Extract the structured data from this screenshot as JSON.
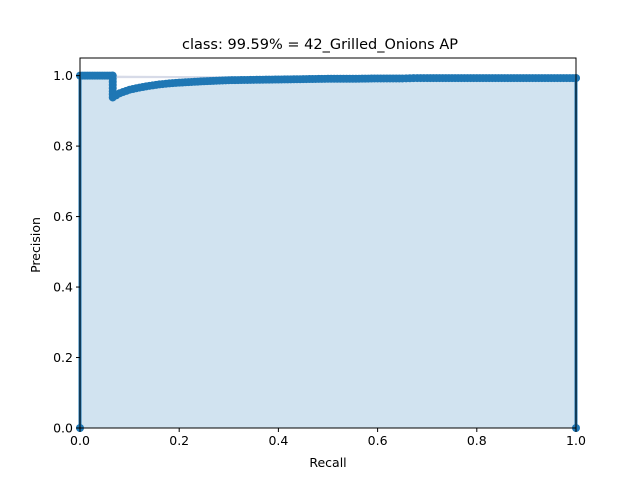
{
  "chart_data": {
    "type": "line",
    "title": "class: 99.59% = 42_Grilled_Onions AP",
    "xlabel": "Recall",
    "ylabel": "Precision",
    "xlim": [
      0.0,
      1.0
    ],
    "ylim": [
      0.0,
      1.05
    ],
    "xticks": [
      0.0,
      0.2,
      0.4,
      0.6,
      0.8,
      1.0
    ],
    "yticks": [
      0.0,
      0.2,
      0.4,
      0.6,
      0.8,
      1.0
    ],
    "xtick_labels": [
      "0.0",
      "0.2",
      "0.4",
      "0.6",
      "0.8",
      "1.0"
    ],
    "ytick_labels": [
      "0.0",
      "0.2",
      "0.4",
      "0.6",
      "0.8",
      "1.0"
    ],
    "grid": false,
    "colors": {
      "line": "#1f77b4",
      "fill": "#d1e3f0",
      "envelope_fill": "#d7dbe8"
    },
    "series": [
      {
        "x": [
          0.0,
          0.0,
          0.005,
          0.01,
          0.015,
          0.02,
          0.025,
          0.03,
          0.035,
          0.04,
          0.045,
          0.05,
          0.055,
          0.06,
          0.065,
          0.066,
          0.066,
          0.08,
          0.1,
          0.12,
          0.14,
          0.16,
          0.18,
          0.2,
          0.25,
          0.3,
          0.35,
          0.4,
          0.45,
          0.5,
          0.55,
          0.6,
          0.65,
          0.68,
          0.7,
          0.75,
          0.8,
          0.85,
          0.9,
          0.95,
          1.0,
          1.0
        ],
        "y": [
          0.0,
          1.0,
          1.0,
          1.0,
          1.0,
          1.0,
          1.0,
          1.0,
          1.0,
          1.0,
          1.0,
          1.0,
          1.0,
          1.0,
          1.0,
          1.0,
          0.938,
          0.95,
          0.96,
          0.966,
          0.971,
          0.975,
          0.978,
          0.98,
          0.984,
          0.987,
          0.988,
          0.989,
          0.99,
          0.991,
          0.991,
          0.992,
          0.992,
          0.993,
          0.993,
          0.993,
          0.993,
          0.993,
          0.993,
          0.993,
          0.993,
          0.0
        ]
      }
    ]
  }
}
